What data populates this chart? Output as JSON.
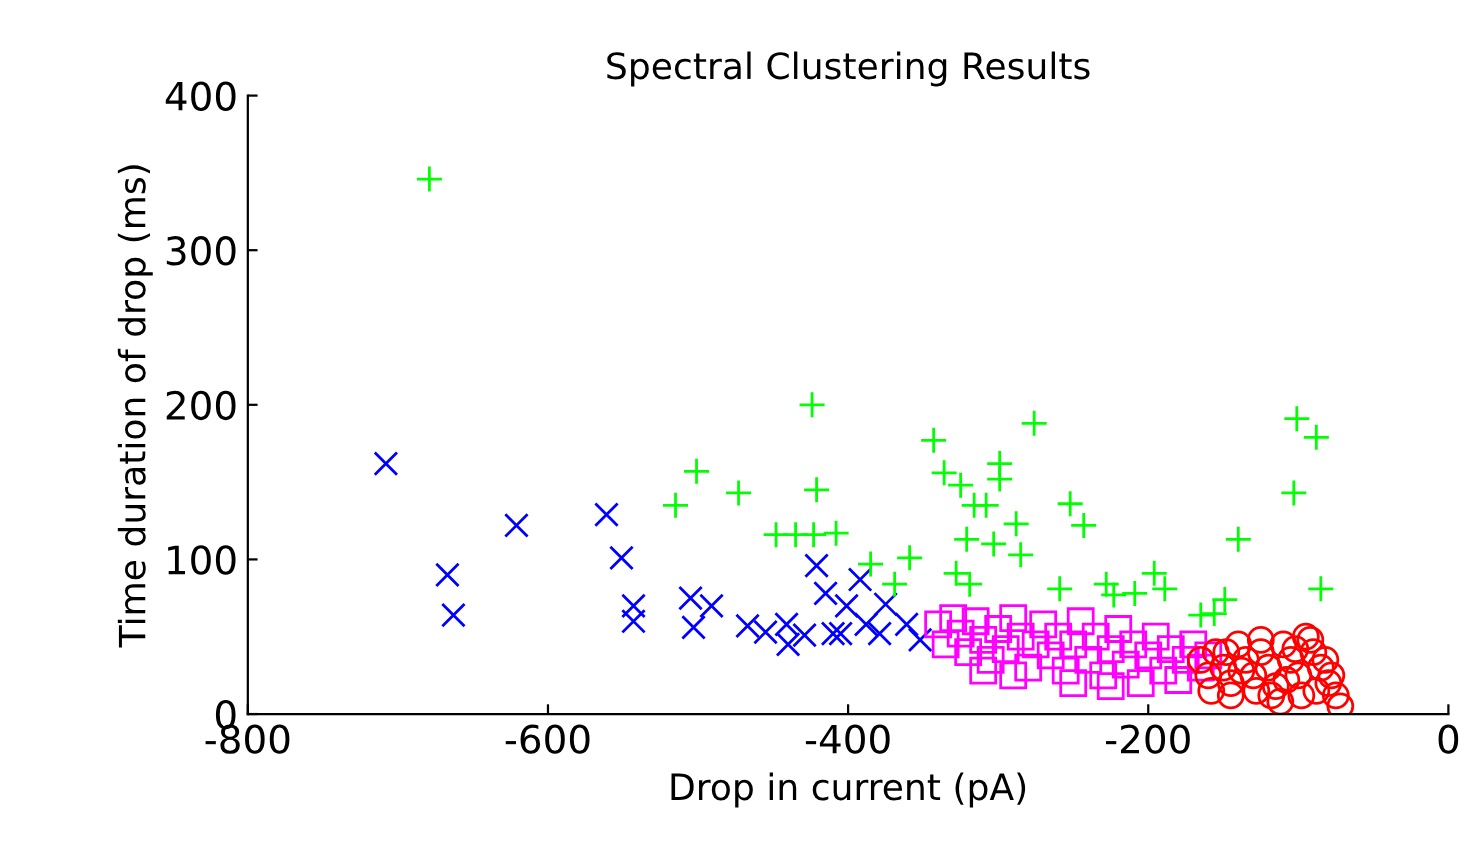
{
  "chart_data": {
    "type": "scatter",
    "title": "Spectral Clustering Results",
    "xlabel": "Drop in current (pA)",
    "ylabel": "Time duration of drop (ms)",
    "xlim": [
      -800,
      0
    ],
    "xticks": [
      -800,
      -600,
      -400,
      -200,
      0
    ],
    "ylim": [
      0,
      400
    ],
    "yticks": [
      0,
      100,
      200,
      300,
      400
    ],
    "grid": false,
    "legend": false,
    "series": [
      {
        "color": "#0000ff",
        "marker": "cross",
        "x": [
          -708,
          -667,
          -663,
          -621,
          -561,
          -551,
          -543,
          -543,
          -505,
          -503,
          -491,
          -467,
          -455,
          -441,
          -440,
          -421,
          -415,
          -410,
          -405,
          -392,
          -388,
          -375,
          -361,
          -352,
          -429,
          -379,
          -401
        ],
        "values": [
          162,
          90,
          64,
          122,
          129,
          101,
          70,
          60,
          75,
          56,
          70,
          57,
          53,
          58,
          45,
          96,
          78,
          52,
          52,
          87,
          58,
          71,
          58,
          48,
          51,
          52,
          70
        ]
      },
      {
        "color": "#ff00ff",
        "marker": "square",
        "x": [
          -340,
          -335,
          -330,
          -325,
          -320,
          -315,
          -310,
          -305,
          -300,
          -295,
          -290,
          -285,
          -280,
          -275,
          -270,
          -265,
          -260,
          -255,
          -250,
          -245,
          -240,
          -235,
          -230,
          -225,
          -220,
          -215,
          -210,
          -205,
          -200,
          -195,
          -190,
          -185,
          -180,
          -175,
          -170,
          -165,
          -160,
          -290,
          -250,
          -310,
          -225
        ],
        "values": [
          58,
          45,
          62,
          52,
          40,
          60,
          48,
          35,
          55,
          42,
          62,
          50,
          30,
          45,
          58,
          38,
          50,
          28,
          45,
          60,
          35,
          50,
          25,
          42,
          55,
          32,
          45,
          20,
          38,
          50,
          28,
          42,
          22,
          35,
          45,
          30,
          38,
          25,
          20,
          28,
          18
        ]
      },
      {
        "color": "#ff0000",
        "marker": "circle",
        "x": [
          -165,
          -160,
          -155,
          -150,
          -145,
          -140,
          -135,
          -130,
          -125,
          -120,
          -115,
          -110,
          -105,
          -100,
          -95,
          -90,
          -85,
          -80,
          -75,
          -72,
          -78,
          -88,
          -98,
          -108,
          -118,
          -128,
          -138,
          -148,
          -158,
          -92,
          -82,
          -102,
          -125,
          -145,
          -112
        ],
        "values": [
          35,
          25,
          40,
          30,
          20,
          45,
          35,
          25,
          40,
          30,
          18,
          45,
          35,
          25,
          50,
          40,
          30,
          20,
          12,
          5,
          25,
          15,
          12,
          22,
          12,
          15,
          28,
          40,
          15,
          48,
          35,
          42,
          48,
          12,
          8
        ]
      },
      {
        "color": "#00ff00",
        "marker": "plus",
        "x": [
          -679,
          -515,
          -501,
          -473,
          -448,
          -435,
          -423,
          -424,
          -421,
          -408,
          -385,
          -359,
          -369,
          -343,
          -336,
          -325,
          -316,
          -308,
          -299,
          -299,
          -288,
          -321,
          -303,
          -285,
          -328,
          -319,
          -276,
          -252,
          -243,
          -259,
          -228,
          -223,
          -196,
          -189,
          -209,
          -165,
          -156,
          -149,
          -140,
          -103,
          -101,
          -88,
          -85
        ],
        "values": [
          346,
          135,
          157,
          143,
          116,
          116,
          116,
          200,
          145,
          117,
          97,
          101,
          84,
          177,
          156,
          148,
          135,
          135,
          162,
          152,
          123,
          113,
          110,
          103,
          91,
          84,
          188,
          136,
          122,
          81,
          84,
          77,
          91,
          81,
          78,
          64,
          65,
          74,
          113,
          143,
          191,
          179,
          81
        ]
      }
    ]
  }
}
